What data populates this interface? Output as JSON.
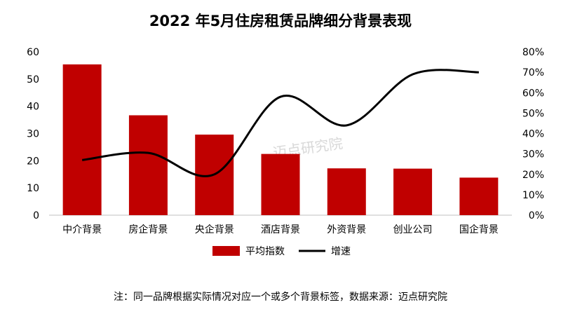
{
  "chart_data": {
    "type": "bar",
    "title": "2022 年5月住房租赁品牌细分背景表现",
    "categories": [
      "中介背景",
      "房企背景",
      "央企背景",
      "酒店背景",
      "外资背景",
      "创业公司",
      "国企背景"
    ],
    "series": [
      {
        "name": "平均指数",
        "type": "bar",
        "axis": "left",
        "values": [
          55.4,
          36.7,
          29.6,
          22.5,
          17.2,
          17.1,
          13.8
        ]
      },
      {
        "name": "增速",
        "type": "line",
        "axis": "right",
        "smooth": true,
        "values": [
          0.27,
          0.305,
          0.2,
          0.58,
          0.44,
          0.69,
          0.7
        ]
      }
    ],
    "y_left": {
      "min": 0,
      "max": 60,
      "ticks": [
        "0",
        "10",
        "20",
        "30",
        "40",
        "50",
        "60"
      ]
    },
    "y_right": {
      "min": 0,
      "max": 0.8,
      "ticks": [
        "0%",
        "10%",
        "20%",
        "30%",
        "40%",
        "50%",
        "60%",
        "70%",
        "80%"
      ]
    },
    "grid": false,
    "legend_position": "bottom",
    "colors": {
      "bar": "#c00000",
      "line": "#000000"
    },
    "watermark": "迈点研究院",
    "note": "注：同一品牌根据实际情况对应一个或多个背景标签，数据来源：迈点研究院"
  }
}
